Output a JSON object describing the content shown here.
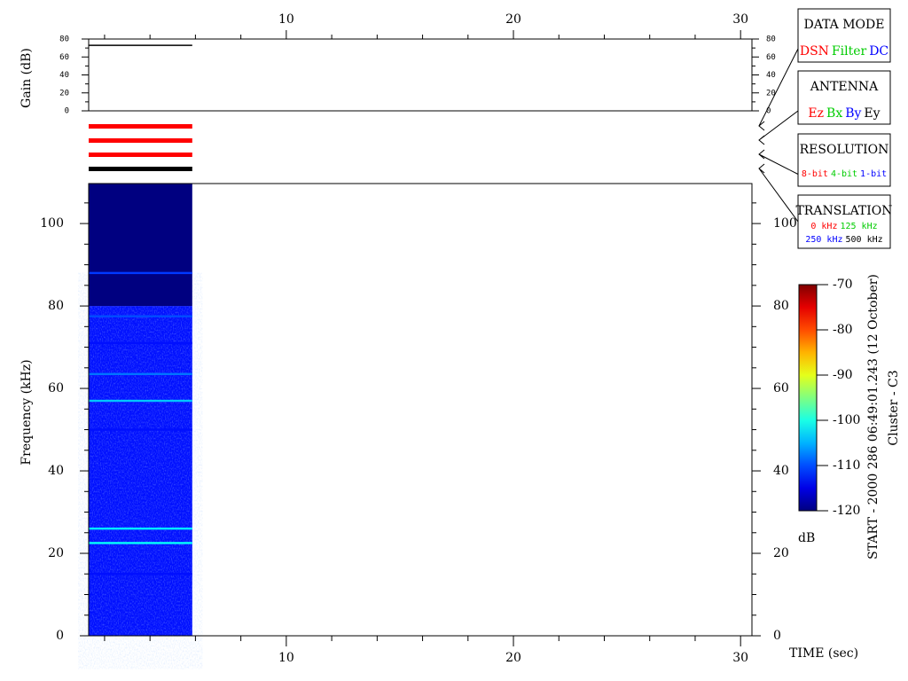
{
  "chart_data": [
    {
      "type": "line",
      "ylabel": "Gain (dB)",
      "x": [
        1.3,
        5.86
      ],
      "values": [
        73,
        73
      ],
      "color": "#000000",
      "xlim": [
        1.3,
        30.5
      ],
      "ylim": [
        0,
        80
      ],
      "yticks": [
        0,
        20,
        40,
        60,
        80
      ],
      "yminor": [
        10,
        30,
        50,
        70
      ]
    },
    {
      "type": "spectrogram",
      "xlabel": "TIME (sec)",
      "ylabel": "Frequency (kHz)",
      "x": [
        1.3,
        5.86
      ],
      "xlim": [
        1.3,
        30.5
      ],
      "ylim": [
        0,
        109.7
      ],
      "xticks": [
        10,
        20,
        30
      ],
      "xminor": [
        2,
        4,
        6,
        8,
        12,
        14,
        16,
        18,
        22,
        24,
        26,
        28
      ],
      "yticks": [
        0,
        20,
        40,
        60,
        80,
        100
      ],
      "yminor": [
        5,
        10,
        15,
        25,
        30,
        35,
        45,
        50,
        55,
        65,
        70,
        75,
        85,
        90,
        95,
        105
      ],
      "bands": [
        {
          "from": 0,
          "to": 80,
          "level": -113
        },
        {
          "from": 80,
          "to": 109.7,
          "level": -120
        }
      ],
      "lines": [
        {
          "freq": 88,
          "level": -111
        },
        {
          "freq": 77.5,
          "level": -110
        },
        {
          "freq": 71,
          "level": -113
        },
        {
          "freq": 63.5,
          "level": -108
        },
        {
          "freq": 57,
          "level": -104
        },
        {
          "freq": 50,
          "level": -113
        },
        {
          "freq": 26,
          "level": -102
        },
        {
          "freq": 22.5,
          "level": -101
        },
        {
          "freq": 15,
          "level": -113
        }
      ],
      "colorbar": {
        "label": "dB",
        "lim": [
          -120,
          -70
        ],
        "ticks": [
          -120,
          -110,
          -100,
          -90,
          -80,
          -70
        ]
      }
    }
  ],
  "legend_boxes": [
    {
      "title": "DATA MODE",
      "items": [
        {
          "text": "DSN",
          "color": "#ff0000"
        },
        {
          "text": "Filter",
          "color": "#00cc00"
        },
        {
          "text": "DC",
          "color": "#0000ff"
        }
      ]
    },
    {
      "title": "ANTENNA",
      "items": [
        {
          "text": "Ez",
          "color": "#ff0000"
        },
        {
          "text": "Bx",
          "color": "#00cc00"
        },
        {
          "text": "By",
          "color": "#0000ff"
        },
        {
          "text": "Ey",
          "color": "#000000"
        }
      ]
    },
    {
      "title": "RESOLUTION",
      "items": [
        {
          "text": "8-bit",
          "color": "#ff0000"
        },
        {
          "text": "4-bit",
          "color": "#00cc00"
        },
        {
          "text": "1-bit",
          "color": "#0000ff"
        }
      ]
    },
    {
      "title": "TRANSLATION",
      "items": [
        {
          "text": "0 kHz",
          "color": "#ff0000"
        },
        {
          "text": "125 kHz",
          "color": "#00cc00"
        },
        {
          "text": "250 kHz",
          "color": "#0000ff"
        },
        {
          "text": "500 kHz",
          "color": "#000000"
        }
      ]
    }
  ],
  "info": {
    "start": "START - 2000 286 06:49:01.243 (12 October)",
    "spacecraft": "Cluster - C3"
  }
}
